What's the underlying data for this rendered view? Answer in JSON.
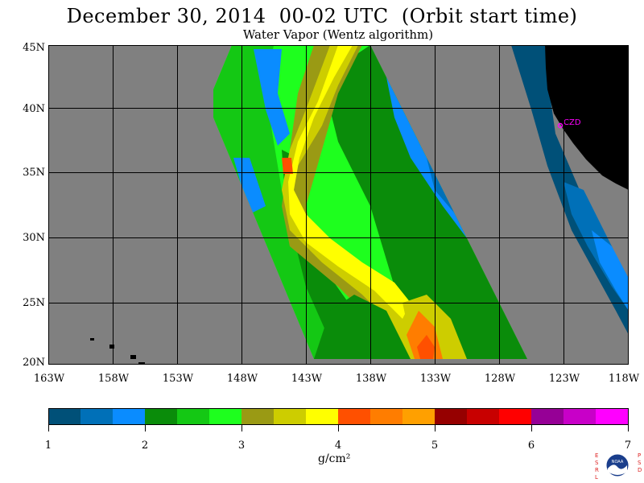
{
  "header": {
    "title": "December 30, 2014  00-02 UTC  (Orbit start time)",
    "subtitle": "Water Vapor (Wentz algorithm)"
  },
  "map": {
    "latitude_labels": [
      "45N",
      "40N",
      "35N",
      "30N",
      "25N",
      "20N"
    ],
    "longitude_labels": [
      "163W",
      "158W",
      "153W",
      "148W",
      "143W",
      "138W",
      "133W",
      "128W",
      "123W",
      "118W"
    ],
    "station_label": "CZD",
    "colors": {
      "no_data": "#808080",
      "land": "#000000",
      "grid": "#000000",
      "station": "#ff00ff"
    }
  },
  "colorbar": {
    "tick_labels": [
      "1",
      "2",
      "3",
      "4",
      "5",
      "6",
      "7"
    ],
    "unit_label": "g/cm²",
    "colors": [
      "#005078",
      "#0070b8",
      "#0a8cff",
      "#0a8c0a",
      "#14c814",
      "#1eff1e",
      "#9a9a14",
      "#cdcd00",
      "#ffff00",
      "#ff5000",
      "#ff7d00",
      "#ffa000",
      "#960000",
      "#c80000",
      "#ff0000",
      "#960096",
      "#c800c8",
      "#ff00ff"
    ]
  },
  "logo": {
    "left_letters": "ESRL",
    "right_letters": "PSD",
    "center_text": "NOAA"
  }
}
